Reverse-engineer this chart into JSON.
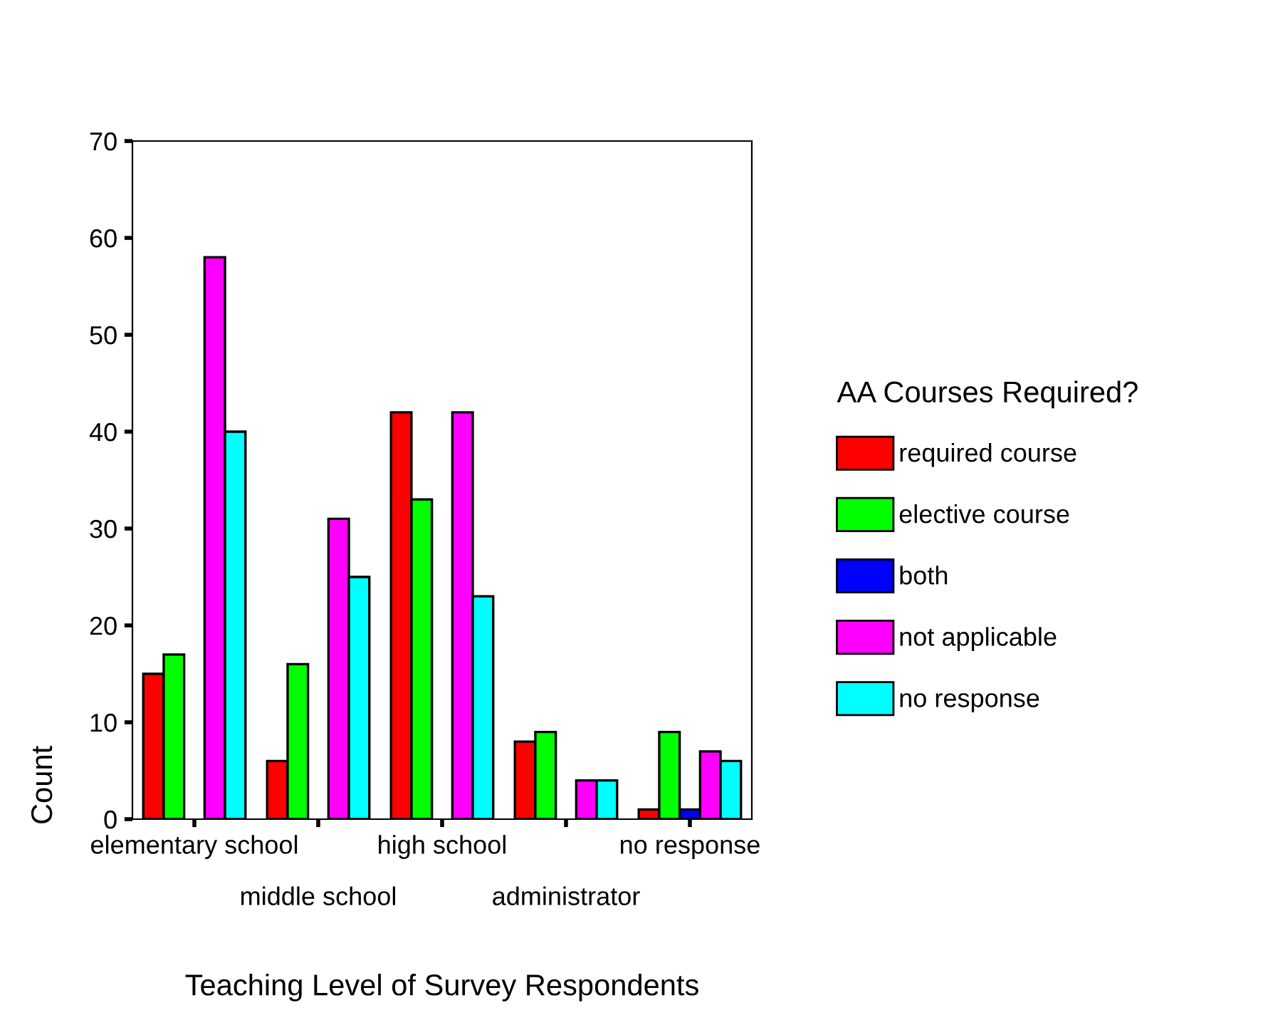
{
  "chart_data": {
    "type": "bar",
    "xlabel": "Teaching Level of Survey Respondents",
    "ylabel": "Count",
    "legend_title": "AA Courses Required?",
    "categories": [
      "elementary school",
      "middle school",
      "high school",
      "administrator",
      "no response"
    ],
    "series": [
      {
        "name": "required course",
        "color": "#ff0000",
        "values": [
          15,
          6,
          42,
          8,
          1
        ]
      },
      {
        "name": "elective course",
        "color": "#00ff00",
        "values": [
          17,
          16,
          33,
          9,
          9
        ]
      },
      {
        "name": "both",
        "color": "#0000ff",
        "values": [
          null,
          null,
          null,
          null,
          1
        ]
      },
      {
        "name": "not applicable",
        "color": "#ff00ff",
        "values": [
          58,
          31,
          42,
          4,
          7
        ]
      },
      {
        "name": "no response",
        "color": "#00ffff",
        "values": [
          40,
          25,
          23,
          4,
          6
        ]
      }
    ],
    "ylim": [
      0,
      70
    ],
    "yticks": [
      0,
      10,
      20,
      30,
      40,
      50,
      60,
      70
    ],
    "grid": false,
    "legend": "right"
  }
}
